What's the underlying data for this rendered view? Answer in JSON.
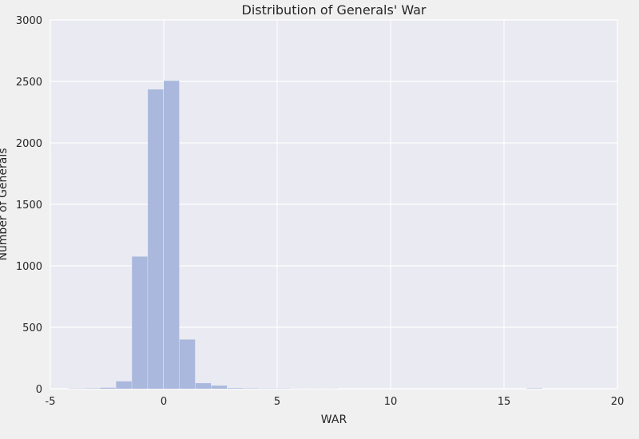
{
  "chart_data": {
    "type": "bar",
    "subtype": "histogram",
    "title": "Distribution of Generals' War",
    "xlabel": "WAR",
    "ylabel": "Number of Generals",
    "xlim": [
      -5,
      20
    ],
    "ylim": [
      0,
      3000
    ],
    "xticks": [
      -5,
      0,
      5,
      10,
      15,
      20
    ],
    "yticks": [
      0,
      500,
      1000,
      1500,
      2000,
      2500,
      3000
    ],
    "grid": true,
    "bins": [
      {
        "start": -4.2,
        "end": -3.5,
        "count": 2
      },
      {
        "start": -3.5,
        "end": -2.8,
        "count": 3
      },
      {
        "start": -2.8,
        "end": -2.1,
        "count": 8
      },
      {
        "start": -2.1,
        "end": -1.4,
        "count": 60
      },
      {
        "start": -1.4,
        "end": -0.7,
        "count": 1075
      },
      {
        "start": -0.7,
        "end": 0.0,
        "count": 2435
      },
      {
        "start": 0.0,
        "end": 0.7,
        "count": 2505
      },
      {
        "start": 0.7,
        "end": 1.4,
        "count": 400
      },
      {
        "start": 1.4,
        "end": 2.1,
        "count": 45
      },
      {
        "start": 2.1,
        "end": 2.8,
        "count": 25
      },
      {
        "start": 2.8,
        "end": 3.5,
        "count": 5
      },
      {
        "start": 3.5,
        "end": 4.2,
        "count": 3
      },
      {
        "start": 4.2,
        "end": 4.9,
        "count": 2
      },
      {
        "start": 4.9,
        "end": 5.6,
        "count": 2
      },
      {
        "start": 5.6,
        "end": 6.3,
        "count": 1
      },
      {
        "start": 6.3,
        "end": 7.0,
        "count": 1
      },
      {
        "start": 7.0,
        "end": 7.7,
        "count": 1
      },
      {
        "start": 16.0,
        "end": 16.7,
        "count": 3
      }
    ],
    "colors": {
      "bar": "#a9b8dc",
      "plot_bg": "#eaeaf2",
      "grid": "#ffffff",
      "text": "#262626"
    }
  }
}
